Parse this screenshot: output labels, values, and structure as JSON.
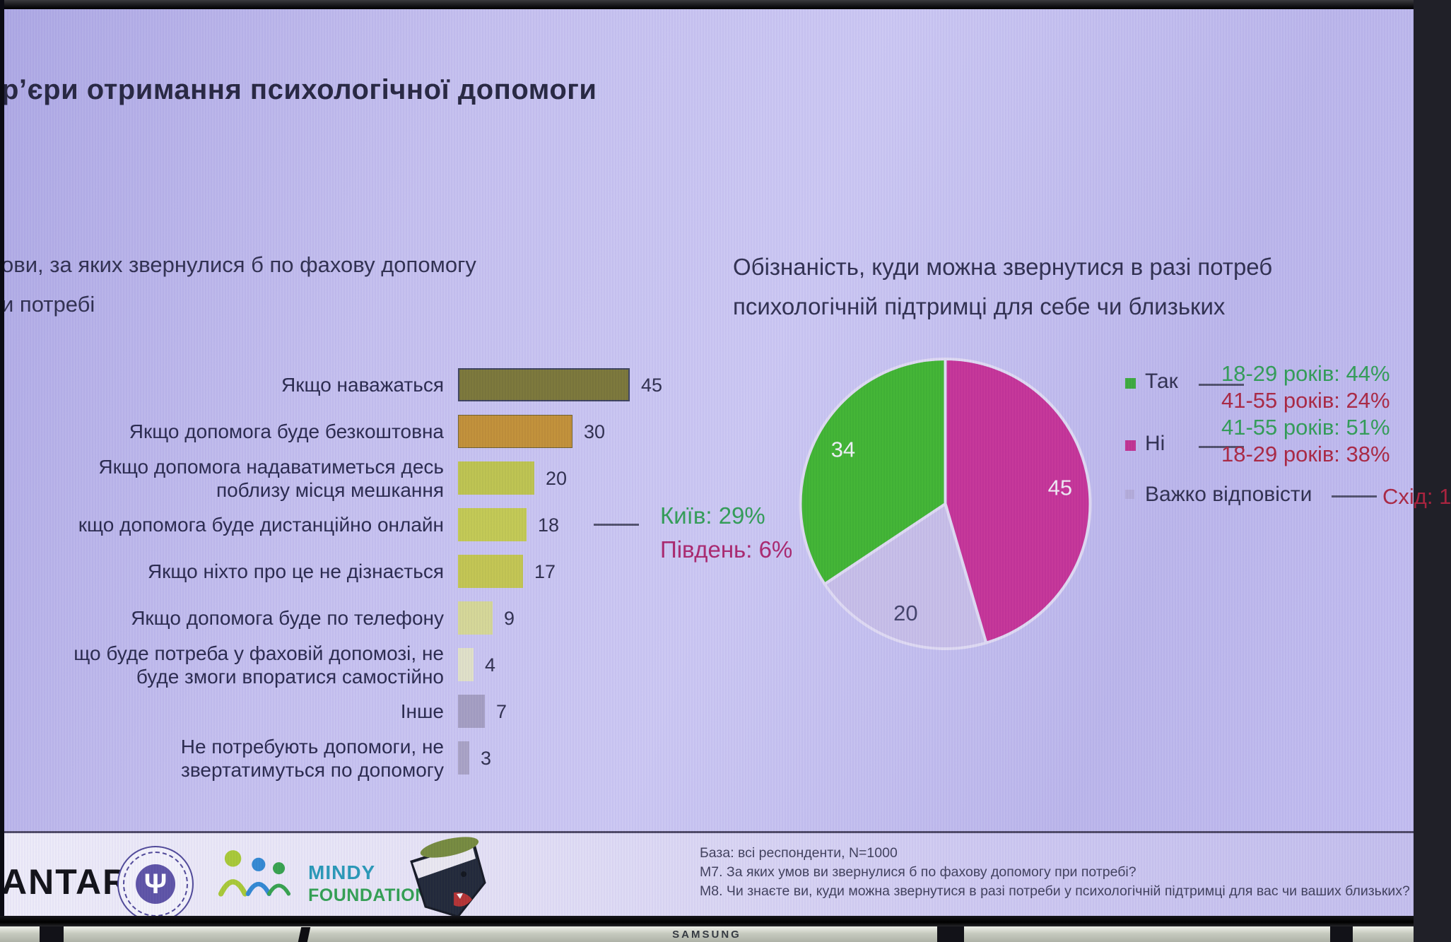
{
  "slide_title": "р’єри отримання психологічної допомоги",
  "chart_data": [
    {
      "type": "bar",
      "orientation": "horizontal",
      "title_lines": [
        "ови, за яких звернулися б по фахову допомогу",
        "и потребі"
      ],
      "categories": [
        "Якщо наважаться",
        "Якщо допомога буде безкоштовна",
        "Якщо допомога надаватиметься десь поблизу місця мешкання",
        "кщо допомога буде дистанційно онлайн",
        "Якщо ніхто про це не дізнається",
        "Якщо допомога буде по телефону",
        "що буде потреба у фаховій допомозі, не буде змоги впоратися самостійно",
        "Інше",
        "Не потребують допомоги, не звертатимуться по допомогу"
      ],
      "label_lines": [
        [
          "Якщо наважаться"
        ],
        [
          "Якщо допомога буде безкоштовна"
        ],
        [
          "Якщо допомога надаватиметься десь",
          "поблизу місця мешкання"
        ],
        [
          "кщо допомога буде дистанційно онлайн"
        ],
        [
          "Якщо ніхто про це не дізнається"
        ],
        [
          "Якщо допомога буде по телефону"
        ],
        [
          "що буде потреба у фаховій допомозі, не",
          "буде змоги впоратися самостійно"
        ],
        [
          "Інше"
        ],
        [
          "Не потребують допомоги, не",
          "звертатимуться по допомогу"
        ]
      ],
      "values": [
        45,
        30,
        20,
        18,
        17,
        9,
        4,
        7,
        3
      ],
      "xlim": [
        0,
        50
      ],
      "bar_colors": [
        "#787434",
        "#c08e33",
        "#bcc24b",
        "#c1c84f",
        "#c1c44d",
        "#d4d694",
        "#dfe0c6",
        "#a29cc0",
        "#a7a1c3"
      ],
      "annotation": {
        "attached_to_value": 18,
        "lines": [
          {
            "text": "Київ: 29%",
            "color": "#2e9b53"
          },
          {
            "text": "Південь: 6%",
            "color": "#a8246b"
          }
        ]
      }
    },
    {
      "type": "pie",
      "title_lines": [
        "Обізнаність, куди можна звернутися в разі потреб",
        "психологічній підтримці для себе чи близьких"
      ],
      "labels": [
        "Так",
        "Ні",
        "Важко відповісти"
      ],
      "values": [
        34,
        45,
        20
      ],
      "colors": [
        "#3db32e",
        "#c43095",
        "#c6bde7"
      ],
      "draw_order": [
        1,
        2,
        0
      ],
      "start_angle": "12 o'clock, clockwise",
      "slice_value_text_colors": [
        "#eef0f6",
        "#efe8f3",
        "#3f3f66"
      ],
      "legend": [
        {
          "label": "Так",
          "swatch": "#3aa83a",
          "details": [
            {
              "text": "18-29 років: 44%",
              "color": "#2e9b53"
            },
            {
              "text": "41-55 років: 24%",
              "color": "#a8243f"
            }
          ]
        },
        {
          "label": "Ні",
          "swatch": "#bf2f8f",
          "details": [
            {
              "text": "41-55 років: 51%",
              "color": "#2e9b53"
            },
            {
              "text": "18-29 років: 38%",
              "color": "#a8243f"
            }
          ]
        },
        {
          "label": "Важко відповісти",
          "swatch": "#b2aad8",
          "details": [
            {
              "text": "Схід: 1",
              "color": "#a8243f"
            }
          ]
        }
      ]
    }
  ],
  "footer": {
    "brand_text": "ANTAR",
    "institute_seal_symbol": "Ψ",
    "mindy_line1": "MINDY",
    "mindy_line2": "FOUNDATION",
    "source_lines": [
      "База: всі респонденти,  N=1000",
      "М7. За яких умов ви звернулися б по фахову допомогу при потребі?",
      "М8. Чи знаєте ви, куди можна звернутися в разі потреби у психологічній  підтримці для вас чи ваших близьких?"
    ]
  },
  "tv": {
    "brand": "SAMSUNG"
  },
  "colors": {
    "background": "#bfbaec",
    "title_text": "#23233d",
    "divider": "#4b4663",
    "annotation_green": "#2e9b53",
    "annotation_crimson": "#a8246b"
  }
}
